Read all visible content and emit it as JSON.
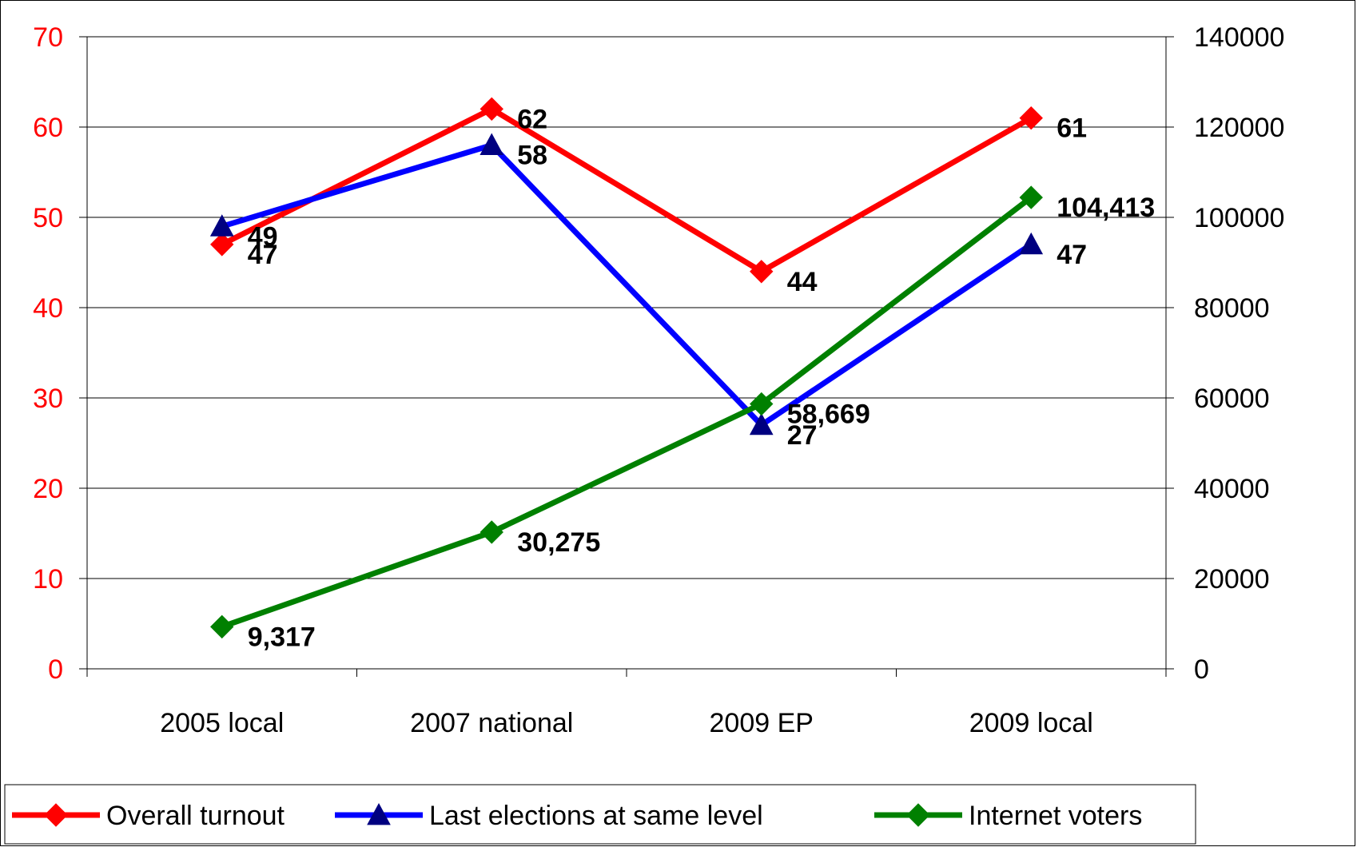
{
  "chart_data": {
    "type": "line",
    "categories": [
      "2005 local",
      "2007 national",
      "2009 EP",
      "2009 local"
    ],
    "y_left": {
      "range": [
        0,
        70
      ],
      "ticks": [
        0,
        10,
        20,
        30,
        40,
        50,
        60,
        70
      ],
      "tick_labels": [
        "0",
        "10",
        "20",
        "30",
        "40",
        "50",
        "60",
        "70"
      ],
      "color": "#ff0000"
    },
    "y_right": {
      "range": [
        0,
        140000
      ],
      "ticks": [
        0,
        20000,
        40000,
        60000,
        80000,
        100000,
        120000,
        140000
      ],
      "tick_labels": [
        "0",
        "20000",
        "40000",
        "60000",
        "80000",
        "100000",
        "120000",
        "140000"
      ],
      "color": "#000000"
    },
    "grid": true,
    "legend_position": "bottom",
    "series": [
      {
        "name": "Overall turnout",
        "axis": "left",
        "color": "#ff0000",
        "marker": "diamond",
        "marker_color": "#ff0000",
        "values": [
          47,
          62,
          44,
          61
        ],
        "labels": [
          "47",
          "62",
          "44",
          "61"
        ]
      },
      {
        "name": "Last elections at same level",
        "axis": "left",
        "color": "#0000ff",
        "marker": "triangle",
        "marker_color": "#000080",
        "values": [
          49,
          58,
          27,
          47
        ],
        "labels": [
          "49",
          "58",
          "27",
          "47"
        ]
      },
      {
        "name": "Internet voters",
        "axis": "right",
        "color": "#008000",
        "marker": "diamond",
        "marker_color": "#008000",
        "values": [
          9317,
          30275,
          58669,
          104413
        ],
        "labels": [
          "9,317",
          "30,275",
          "58,669",
          "104,413"
        ]
      }
    ]
  }
}
